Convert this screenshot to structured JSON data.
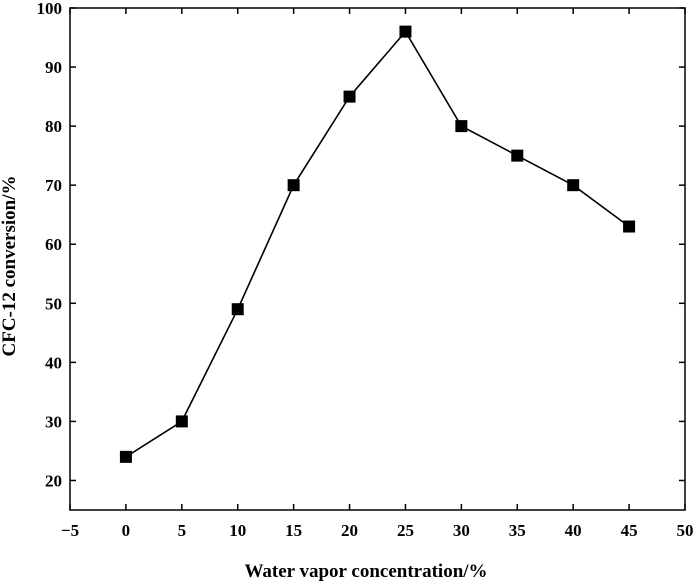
{
  "chart_data": {
    "type": "line",
    "title": "",
    "xlabel": "Water vapor concentration/%",
    "ylabel": "CFC-12 conversion/%",
    "xlim": [
      -5,
      50
    ],
    "ylim": [
      15,
      100
    ],
    "xticks": [
      -5,
      0,
      5,
      10,
      15,
      20,
      25,
      30,
      35,
      40,
      45,
      50
    ],
    "xtick_labels": [
      "−5",
      "0",
      "5",
      "10",
      "15",
      "20",
      "25",
      "30",
      "35",
      "40",
      "45",
      "50"
    ],
    "yticks": [
      20,
      30,
      40,
      50,
      60,
      70,
      80,
      90,
      100
    ],
    "ytick_labels": [
      "20",
      "30",
      "40",
      "50",
      "60",
      "70",
      "80",
      "90",
      "100"
    ],
    "grid": false,
    "legend": "none",
    "marker": "square",
    "color": "#000000",
    "series": [
      {
        "x": [
          0,
          5,
          10,
          15,
          20,
          25,
          30,
          35,
          40,
          45
        ],
        "y": [
          24,
          30,
          49,
          70,
          85,
          96,
          80,
          75,
          70,
          63
        ]
      }
    ]
  }
}
